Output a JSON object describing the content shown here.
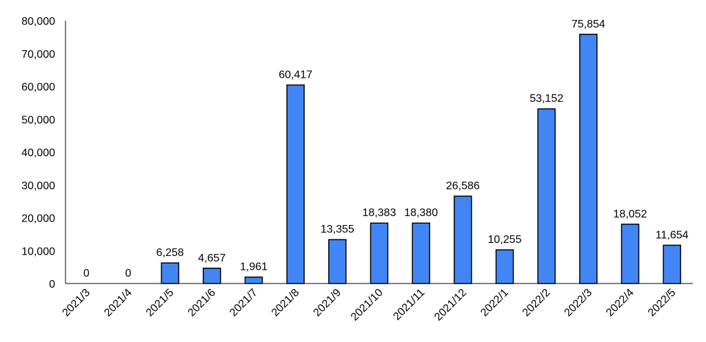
{
  "chart_data": {
    "type": "bar",
    "title": "",
    "xlabel": "",
    "ylabel": "",
    "categories": [
      "2021/3",
      "2021/4",
      "2021/5",
      "2021/6",
      "2021/7",
      "2021/8",
      "2021/9",
      "2021/10",
      "2021/11",
      "2021/12",
      "2022/1",
      "2022/2",
      "2022/3",
      "2022/4",
      "2022/5"
    ],
    "values": [
      0,
      0,
      6258,
      4657,
      1961,
      60417,
      13355,
      18383,
      18380,
      26586,
      10255,
      53152,
      75854,
      18052,
      11654
    ],
    "value_labels": [
      "0",
      "0",
      "6,258",
      "4,657",
      "1,961",
      "60,417",
      "13,355",
      "18,383",
      "18,380",
      "26,586",
      "10,255",
      "53,152",
      "75,854",
      "18,052",
      "11,654"
    ],
    "yticks": [
      "0",
      "10,000",
      "20,000",
      "30,000",
      "40,000",
      "50,000",
      "60,000",
      "70,000",
      "80,000"
    ],
    "ylim": [
      0,
      80000
    ],
    "grid": false,
    "legend": "none",
    "bar_color": "#4285F4"
  }
}
